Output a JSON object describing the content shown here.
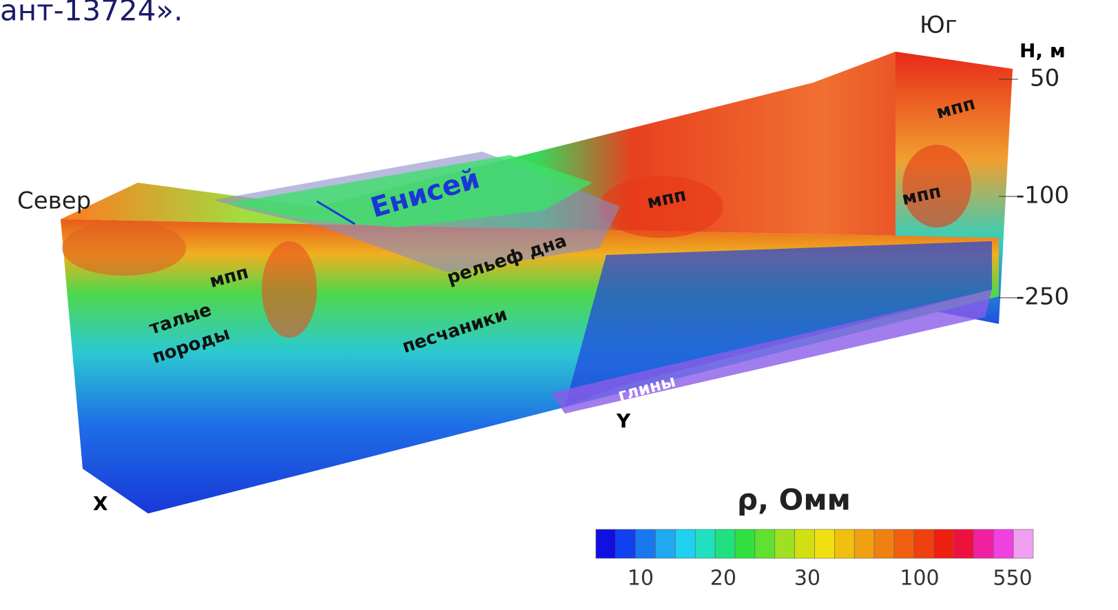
{
  "header": {
    "caption_fragment": "ант-13724»."
  },
  "directions": {
    "south": "Юг",
    "north": "Север"
  },
  "depth_axis": {
    "title": "Н, м",
    "ticks": [
      "50",
      "-100",
      "-250"
    ]
  },
  "labels": {
    "river": "Енисей",
    "bottom_relief": "рельеф дна",
    "mpp": [
      "мпп",
      "мпп",
      "мпп",
      "мпп"
    ],
    "thawed_rocks": [
      "талые",
      "породы"
    ],
    "sandstones": "песчаники",
    "clays": "глины",
    "y_axis": "Y",
    "x_axis": "X"
  },
  "colorbar": {
    "title": "ρ, Омм",
    "ticks": [
      "10",
      "20",
      "30",
      "100",
      "550"
    ]
  }
}
